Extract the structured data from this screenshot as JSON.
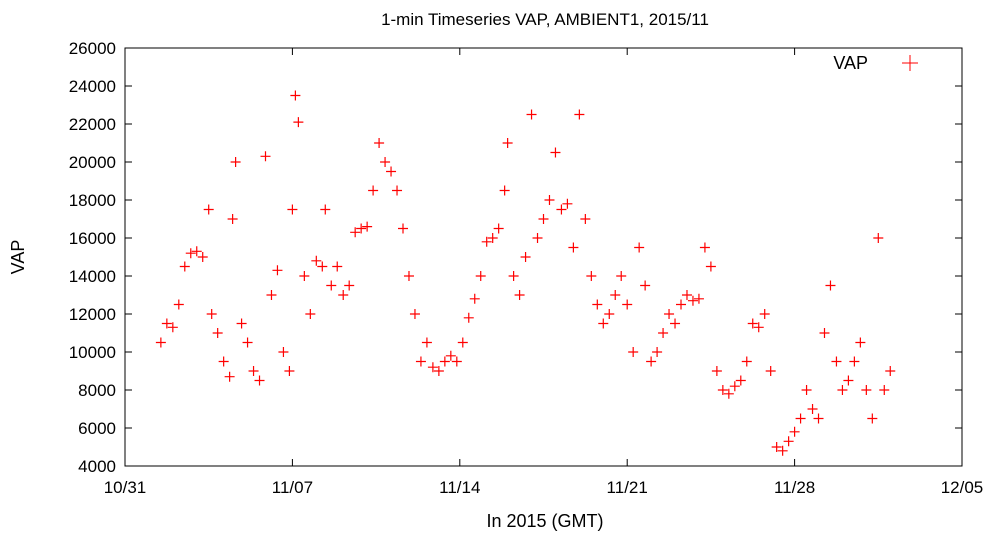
{
  "chart_data": {
    "type": "scatter",
    "title": "1-min Timeseries VAP, AMBIENT1, 2015/11",
    "xlabel": "In 2015 (GMT)",
    "ylabel": "VAP",
    "x_ticks": [
      "10/31",
      "11/07",
      "11/14",
      "11/21",
      "11/28",
      "12/05"
    ],
    "x_range": [
      "2015-10-31",
      "2015-12-05"
    ],
    "ylim": [
      4000,
      26000
    ],
    "y_ticks": [
      4000,
      6000,
      8000,
      10000,
      12000,
      14000,
      16000,
      18000,
      20000,
      22000,
      24000,
      26000
    ],
    "grid": false,
    "legend_position": "top-right",
    "marker": "+",
    "color": "#ff0000",
    "series": [
      {
        "name": "VAP",
        "points": [
          [
            "2015-11-01 12:00",
            10500
          ],
          [
            "2015-11-01 18:00",
            11500
          ],
          [
            "2015-11-02 00:00",
            11300
          ],
          [
            "2015-11-02 06:00",
            12500
          ],
          [
            "2015-11-02 12:00",
            14500
          ],
          [
            "2015-11-02 18:00",
            15200
          ],
          [
            "2015-11-03 00:00",
            15300
          ],
          [
            "2015-11-03 06:00",
            15000
          ],
          [
            "2015-11-03 12:00",
            17500
          ],
          [
            "2015-11-03 15:00",
            12000
          ],
          [
            "2015-11-03 21:00",
            11000
          ],
          [
            "2015-11-04 03:00",
            9500
          ],
          [
            "2015-11-04 09:00",
            8700
          ],
          [
            "2015-11-04 12:00",
            17000
          ],
          [
            "2015-11-04 15:00",
            20000
          ],
          [
            "2015-11-04 21:00",
            11500
          ],
          [
            "2015-11-05 03:00",
            10500
          ],
          [
            "2015-11-05 09:00",
            9000
          ],
          [
            "2015-11-05 15:00",
            8500
          ],
          [
            "2015-11-05 21:00",
            20300
          ],
          [
            "2015-11-06 03:00",
            13000
          ],
          [
            "2015-11-06 09:00",
            14300
          ],
          [
            "2015-11-06 15:00",
            10000
          ],
          [
            "2015-11-06 21:00",
            9000
          ],
          [
            "2015-11-07 00:00",
            17500
          ],
          [
            "2015-11-07 03:00",
            23500
          ],
          [
            "2015-11-07 06:00",
            22100
          ],
          [
            "2015-11-07 12:00",
            14000
          ],
          [
            "2015-11-07 18:00",
            12000
          ],
          [
            "2015-11-08 00:00",
            14800
          ],
          [
            "2015-11-08 06:00",
            14500
          ],
          [
            "2015-11-08 09:00",
            17500
          ],
          [
            "2015-11-08 15:00",
            13500
          ],
          [
            "2015-11-08 21:00",
            14500
          ],
          [
            "2015-11-09 03:00",
            13000
          ],
          [
            "2015-11-09 09:00",
            13500
          ],
          [
            "2015-11-09 15:00",
            16300
          ],
          [
            "2015-11-09 21:00",
            16500
          ],
          [
            "2015-11-10 03:00",
            16600
          ],
          [
            "2015-11-10 09:00",
            18500
          ],
          [
            "2015-11-10 15:00",
            21000
          ],
          [
            "2015-11-10 21:00",
            20000
          ],
          [
            "2015-11-11 03:00",
            19500
          ],
          [
            "2015-11-11 09:00",
            18500
          ],
          [
            "2015-11-11 15:00",
            16500
          ],
          [
            "2015-11-11 21:00",
            14000
          ],
          [
            "2015-11-12 03:00",
            12000
          ],
          [
            "2015-11-12 09:00",
            9500
          ],
          [
            "2015-11-12 15:00",
            10500
          ],
          [
            "2015-11-12 21:00",
            9200
          ],
          [
            "2015-11-13 03:00",
            9000
          ],
          [
            "2015-11-13 09:00",
            9500
          ],
          [
            "2015-11-13 15:00",
            9800
          ],
          [
            "2015-11-13 21:00",
            9500
          ],
          [
            "2015-11-14 03:00",
            10500
          ],
          [
            "2015-11-14 09:00",
            11800
          ],
          [
            "2015-11-14 15:00",
            12800
          ],
          [
            "2015-11-14 21:00",
            14000
          ],
          [
            "2015-11-15 03:00",
            15800
          ],
          [
            "2015-11-15 09:00",
            16000
          ],
          [
            "2015-11-15 15:00",
            16500
          ],
          [
            "2015-11-15 21:00",
            18500
          ],
          [
            "2015-11-16 00:00",
            21000
          ],
          [
            "2015-11-16 06:00",
            14000
          ],
          [
            "2015-11-16 12:00",
            13000
          ],
          [
            "2015-11-16 18:00",
            15000
          ],
          [
            "2015-11-17 00:00",
            22500
          ],
          [
            "2015-11-17 06:00",
            16000
          ],
          [
            "2015-11-17 12:00",
            17000
          ],
          [
            "2015-11-17 18:00",
            18000
          ],
          [
            "2015-11-18 00:00",
            20500
          ],
          [
            "2015-11-18 06:00",
            17500
          ],
          [
            "2015-11-18 12:00",
            17800
          ],
          [
            "2015-11-18 18:00",
            15500
          ],
          [
            "2015-11-19 00:00",
            22500
          ],
          [
            "2015-11-19 06:00",
            17000
          ],
          [
            "2015-11-19 12:00",
            14000
          ],
          [
            "2015-11-19 18:00",
            12500
          ],
          [
            "2015-11-20 00:00",
            11500
          ],
          [
            "2015-11-20 06:00",
            12000
          ],
          [
            "2015-11-20 12:00",
            13000
          ],
          [
            "2015-11-20 18:00",
            14000
          ],
          [
            "2015-11-21 00:00",
            12500
          ],
          [
            "2015-11-21 06:00",
            10000
          ],
          [
            "2015-11-21 12:00",
            15500
          ],
          [
            "2015-11-21 18:00",
            13500
          ],
          [
            "2015-11-22 00:00",
            9500
          ],
          [
            "2015-11-22 06:00",
            10000
          ],
          [
            "2015-11-22 12:00",
            11000
          ],
          [
            "2015-11-22 18:00",
            12000
          ],
          [
            "2015-11-23 00:00",
            11500
          ],
          [
            "2015-11-23 06:00",
            12500
          ],
          [
            "2015-11-23 12:00",
            13000
          ],
          [
            "2015-11-23 18:00",
            12700
          ],
          [
            "2015-11-24 00:00",
            12800
          ],
          [
            "2015-11-24 06:00",
            15500
          ],
          [
            "2015-11-24 12:00",
            14500
          ],
          [
            "2015-11-24 18:00",
            9000
          ],
          [
            "2015-11-25 00:00",
            8000
          ],
          [
            "2015-11-25 06:00",
            7800
          ],
          [
            "2015-11-25 12:00",
            8200
          ],
          [
            "2015-11-25 18:00",
            8500
          ],
          [
            "2015-11-26 00:00",
            9500
          ],
          [
            "2015-11-26 06:00",
            11500
          ],
          [
            "2015-11-26 12:00",
            11300
          ],
          [
            "2015-11-26 18:00",
            12000
          ],
          [
            "2015-11-27 00:00",
            9000
          ],
          [
            "2015-11-27 06:00",
            5000
          ],
          [
            "2015-11-27 12:00",
            4800
          ],
          [
            "2015-11-27 18:00",
            5300
          ],
          [
            "2015-11-28 00:00",
            5800
          ],
          [
            "2015-11-28 06:00",
            6500
          ],
          [
            "2015-11-28 12:00",
            8000
          ],
          [
            "2015-11-28 18:00",
            7000
          ],
          [
            "2015-11-29 00:00",
            6500
          ],
          [
            "2015-11-29 06:00",
            11000
          ],
          [
            "2015-11-29 12:00",
            13500
          ],
          [
            "2015-11-29 18:00",
            9500
          ],
          [
            "2015-11-30 00:00",
            8000
          ],
          [
            "2015-11-30 06:00",
            8500
          ],
          [
            "2015-11-30 12:00",
            9500
          ],
          [
            "2015-11-30 18:00",
            10500
          ],
          [
            "2015-12-01 00:00",
            8000
          ],
          [
            "2015-12-01 06:00",
            6500
          ],
          [
            "2015-12-01 12:00",
            16000
          ],
          [
            "2015-12-01 18:00",
            8000
          ],
          [
            "2015-12-02 00:00",
            9000
          ]
        ]
      }
    ]
  }
}
